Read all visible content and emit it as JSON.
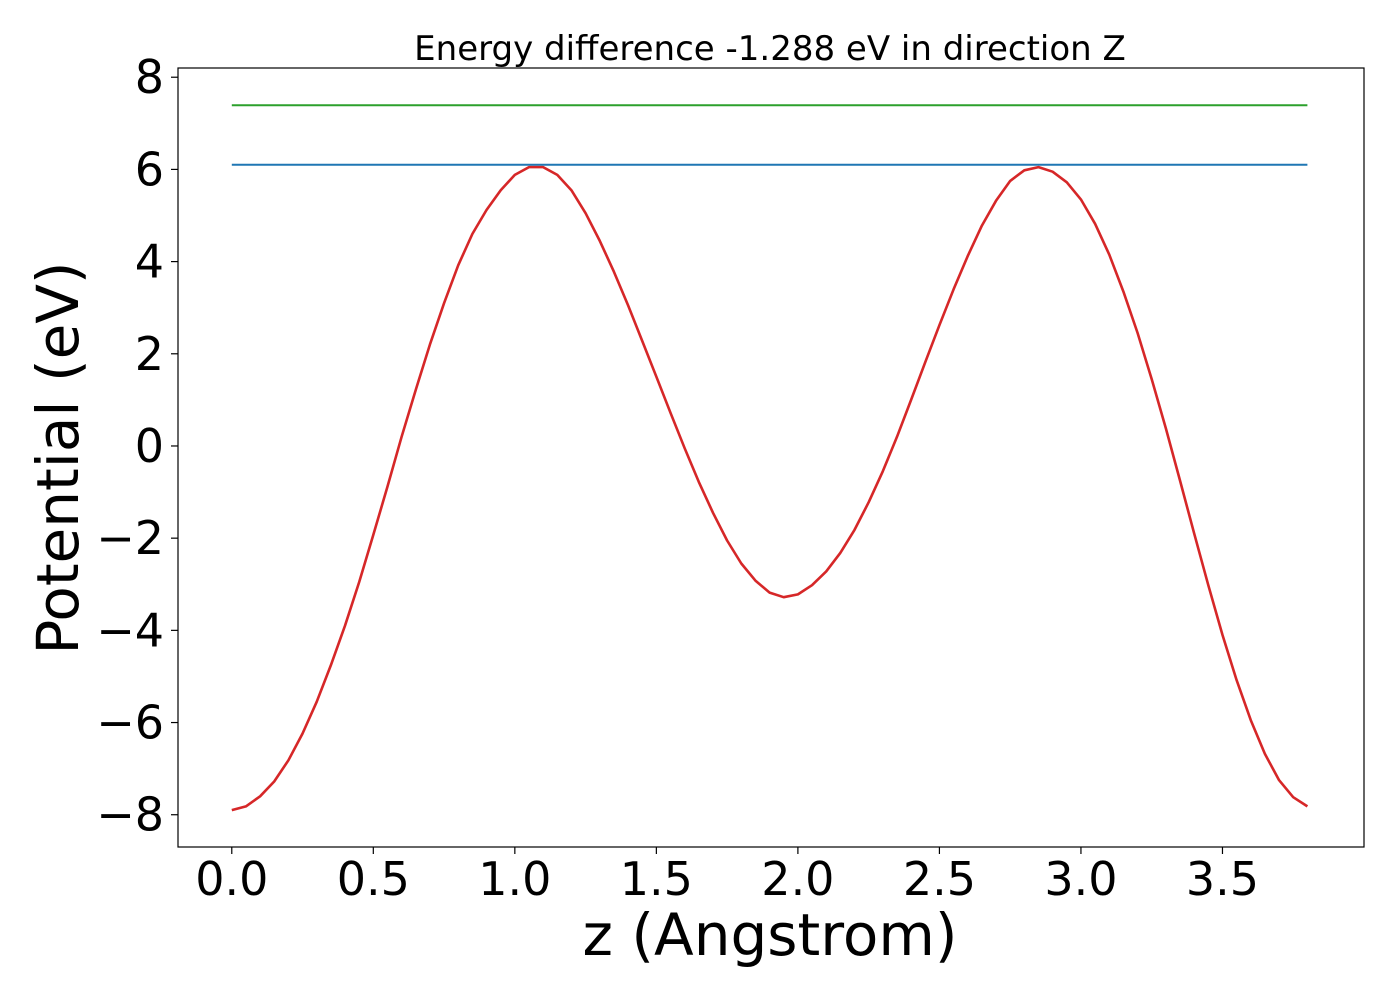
{
  "chart_data": {
    "type": "line",
    "title": "Energy difference -1.288 eV in direction Z",
    "xlabel": "z (Angstrom)",
    "ylabel": "Potential (eV)",
    "xlim": [
      -0.19,
      4.0
    ],
    "ylim": [
      -8.7,
      8.2
    ],
    "x_ticks": [
      0.0,
      0.5,
      1.0,
      1.5,
      2.0,
      2.5,
      3.0,
      3.5
    ],
    "x_tick_labels": [
      "0.0",
      "0.5",
      "1.0",
      "1.5",
      "2.0",
      "2.5",
      "3.0",
      "3.5"
    ],
    "y_ticks": [
      -8,
      -6,
      -4,
      -2,
      0,
      2,
      4,
      6,
      8
    ],
    "y_tick_labels": [
      "−8",
      "−6",
      "−4",
      "−2",
      "0",
      "2",
      "4",
      "6",
      "8"
    ],
    "grid": false,
    "series": [
      {
        "color": "#d62728",
        "x": [
          0.0,
          0.05,
          0.1,
          0.15,
          0.2,
          0.25,
          0.3,
          0.35,
          0.4,
          0.45,
          0.5,
          0.55,
          0.6,
          0.65,
          0.7,
          0.75,
          0.8,
          0.85,
          0.9,
          0.95,
          1.0,
          1.05,
          1.1,
          1.15,
          1.2,
          1.25,
          1.3,
          1.35,
          1.4,
          1.45,
          1.5,
          1.55,
          1.6,
          1.65,
          1.7,
          1.75,
          1.8,
          1.85,
          1.9,
          1.95,
          2.0,
          2.05,
          2.1,
          2.15,
          2.2,
          2.25,
          2.3,
          2.35,
          2.4,
          2.45,
          2.5,
          2.55,
          2.6,
          2.65,
          2.7,
          2.75,
          2.8,
          2.85,
          2.9,
          2.95,
          3.0,
          3.05,
          3.1,
          3.15,
          3.2,
          3.25,
          3.3,
          3.35,
          3.4,
          3.45,
          3.5,
          3.55,
          3.6,
          3.65,
          3.7,
          3.75,
          3.8
        ],
        "y": [
          -7.9,
          -7.82,
          -7.6,
          -7.28,
          -6.82,
          -6.24,
          -5.55,
          -4.76,
          -3.9,
          -2.95,
          -1.93,
          -0.88,
          0.2,
          1.22,
          2.2,
          3.1,
          3.92,
          4.6,
          5.12,
          5.55,
          5.88,
          6.05,
          6.05,
          5.88,
          5.55,
          5.05,
          4.45,
          3.78,
          3.05,
          2.28,
          1.5,
          0.72,
          -0.05,
          -0.78,
          -1.45,
          -2.05,
          -2.55,
          -2.92,
          -3.18,
          -3.28,
          -3.22,
          -3.02,
          -2.72,
          -2.32,
          -1.82,
          -1.22,
          -0.55,
          0.2,
          1.0,
          1.82,
          2.62,
          3.4,
          4.12,
          4.78,
          5.32,
          5.75,
          5.98,
          6.05,
          5.95,
          5.72,
          5.35,
          4.82,
          4.15,
          3.35,
          2.45,
          1.45,
          0.38,
          -0.75,
          -1.9,
          -3.02,
          -4.1,
          -5.08,
          -5.95,
          -6.68,
          -7.25,
          -7.62,
          -7.82
        ]
      },
      {
        "color": "#1f77b4",
        "x": [
          0.0,
          3.8
        ],
        "y": [
          6.1,
          6.1
        ]
      },
      {
        "color": "#2ca02c",
        "x": [
          0.0,
          3.8
        ],
        "y": [
          7.39,
          7.39
        ]
      }
    ]
  }
}
